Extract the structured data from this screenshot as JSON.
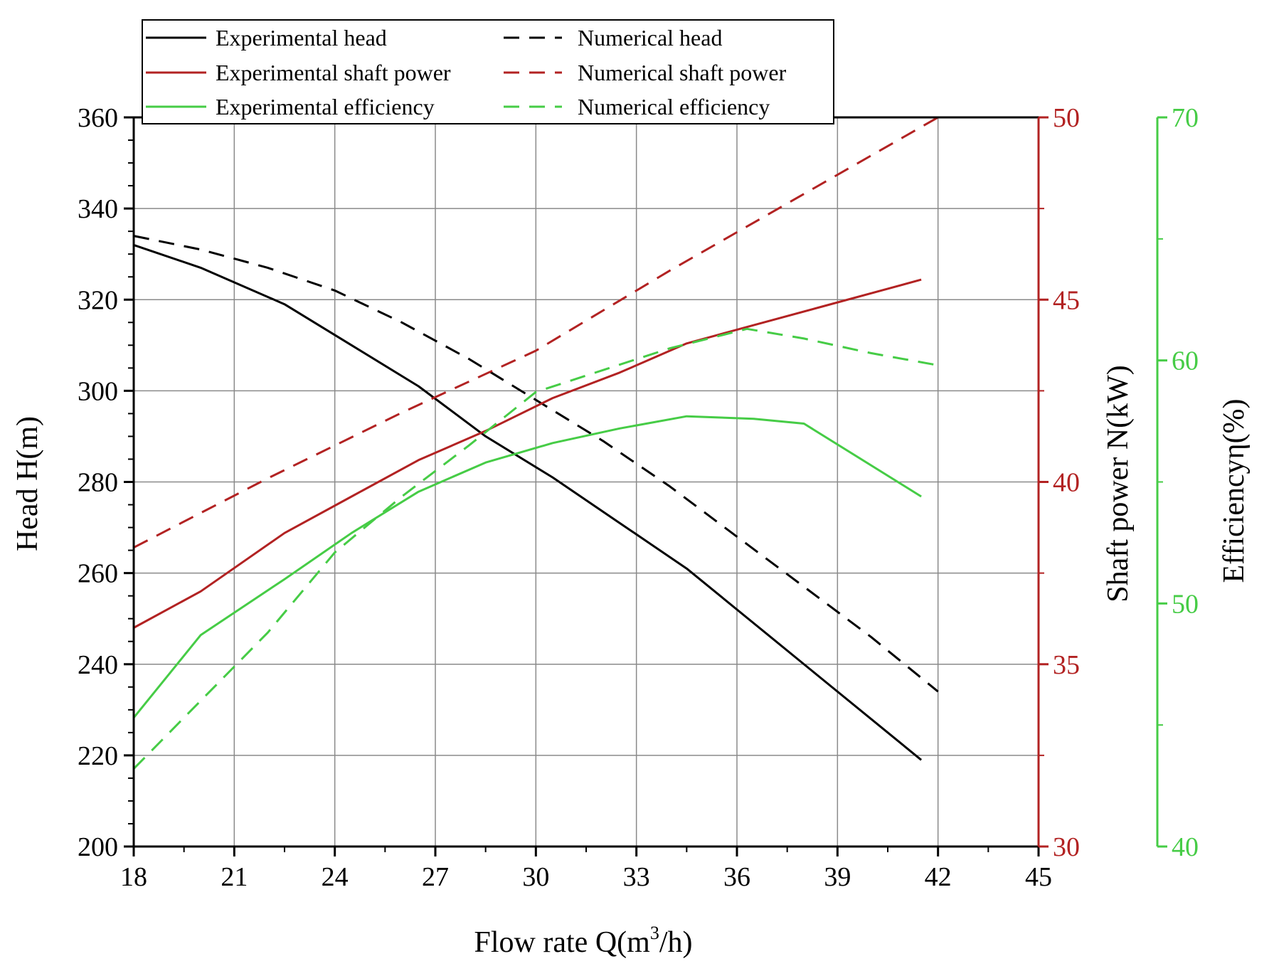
{
  "chart_data": {
    "type": "line",
    "xlabel_prefix": "Flow rate Q(m",
    "xlabel_sup": "3",
    "xlabel_suffix": "/h)",
    "x_ticks": [
      18,
      21,
      24,
      27,
      30,
      33,
      36,
      39,
      42,
      45
    ],
    "xlim": [
      18,
      45
    ],
    "axes": {
      "head": {
        "label": "Head H(m)",
        "ylim": [
          200,
          360
        ],
        "ticks": [
          200,
          220,
          240,
          260,
          280,
          300,
          320,
          340,
          360
        ],
        "color": "#000000"
      },
      "power": {
        "label": "Shaft power N(kW)",
        "ylim": [
          30,
          50
        ],
        "ticks": [
          30,
          35,
          40,
          45,
          50
        ],
        "color": "#b22222"
      },
      "efficiency": {
        "label": "Efficiencyη(%)",
        "ylim": [
          40,
          70
        ],
        "ticks": [
          40,
          50,
          60,
          70
        ],
        "color": "#46cc46"
      }
    },
    "grid": true,
    "legend_position": "top",
    "series": [
      {
        "name": "Experimental head",
        "axis": "head",
        "style": "solid",
        "color": "#000000",
        "x": [
          18,
          20,
          22.5,
          24.5,
          26.5,
          28.5,
          30.5,
          32.5,
          34.5,
          36.5,
          38.5,
          40.5,
          41.5
        ],
        "y": [
          332,
          327,
          319,
          310,
          301,
          290,
          281,
          271,
          261,
          249,
          237,
          225,
          219
        ]
      },
      {
        "name": "Numerical head",
        "axis": "head",
        "style": "dashed",
        "color": "#000000",
        "x": [
          18,
          20,
          22,
          24,
          26,
          28,
          30,
          32,
          34,
          36,
          38,
          40,
          42
        ],
        "y": [
          334,
          331,
          327,
          322,
          315,
          307,
          298,
          289,
          279,
          268,
          257,
          246,
          234
        ]
      },
      {
        "name": "Experimental shaft power",
        "axis": "power",
        "style": "solid",
        "color": "#b22222",
        "x": [
          18,
          20,
          22.5,
          24.5,
          26.5,
          28.5,
          30.5,
          32.5,
          34.5,
          36.5,
          38.5,
          40.5,
          41.5
        ],
        "y": [
          36,
          37,
          38.6,
          39.6,
          40.6,
          41.4,
          42.3,
          43,
          43.8,
          44.3,
          44.8,
          45.3,
          45.55
        ]
      },
      {
        "name": "Numerical shaft power",
        "axis": "power",
        "style": "dashed",
        "color": "#b22222",
        "x": [
          18,
          22,
          26,
          30,
          34,
          38,
          42
        ],
        "y": [
          38.2,
          40.1,
          41.9,
          43.6,
          45.8,
          47.9,
          50
        ]
      },
      {
        "name": "Experimental efficiency",
        "axis": "efficiency",
        "style": "solid",
        "color": "#46cc46",
        "x": [
          18,
          20,
          22.5,
          24.5,
          26.5,
          28.5,
          30.5,
          32.5,
          34.5,
          36.5,
          38,
          41.5
        ],
        "y": [
          45.3,
          48.7,
          51,
          52.9,
          54.6,
          55.8,
          56.6,
          57.2,
          57.7,
          57.6,
          57.4,
          54.4
        ]
      },
      {
        "name": "Numerical efficiency",
        "axis": "efficiency",
        "style": "dashed",
        "color": "#46cc46",
        "x": [
          18,
          20,
          22,
          24,
          26,
          28,
          30,
          32,
          34,
          36.3,
          38,
          40,
          42
        ],
        "y": [
          43.2,
          46,
          48.8,
          52.1,
          54.4,
          56.5,
          58.7,
          59.6,
          60.5,
          61.3,
          60.9,
          60.3,
          59.8
        ]
      }
    ]
  }
}
